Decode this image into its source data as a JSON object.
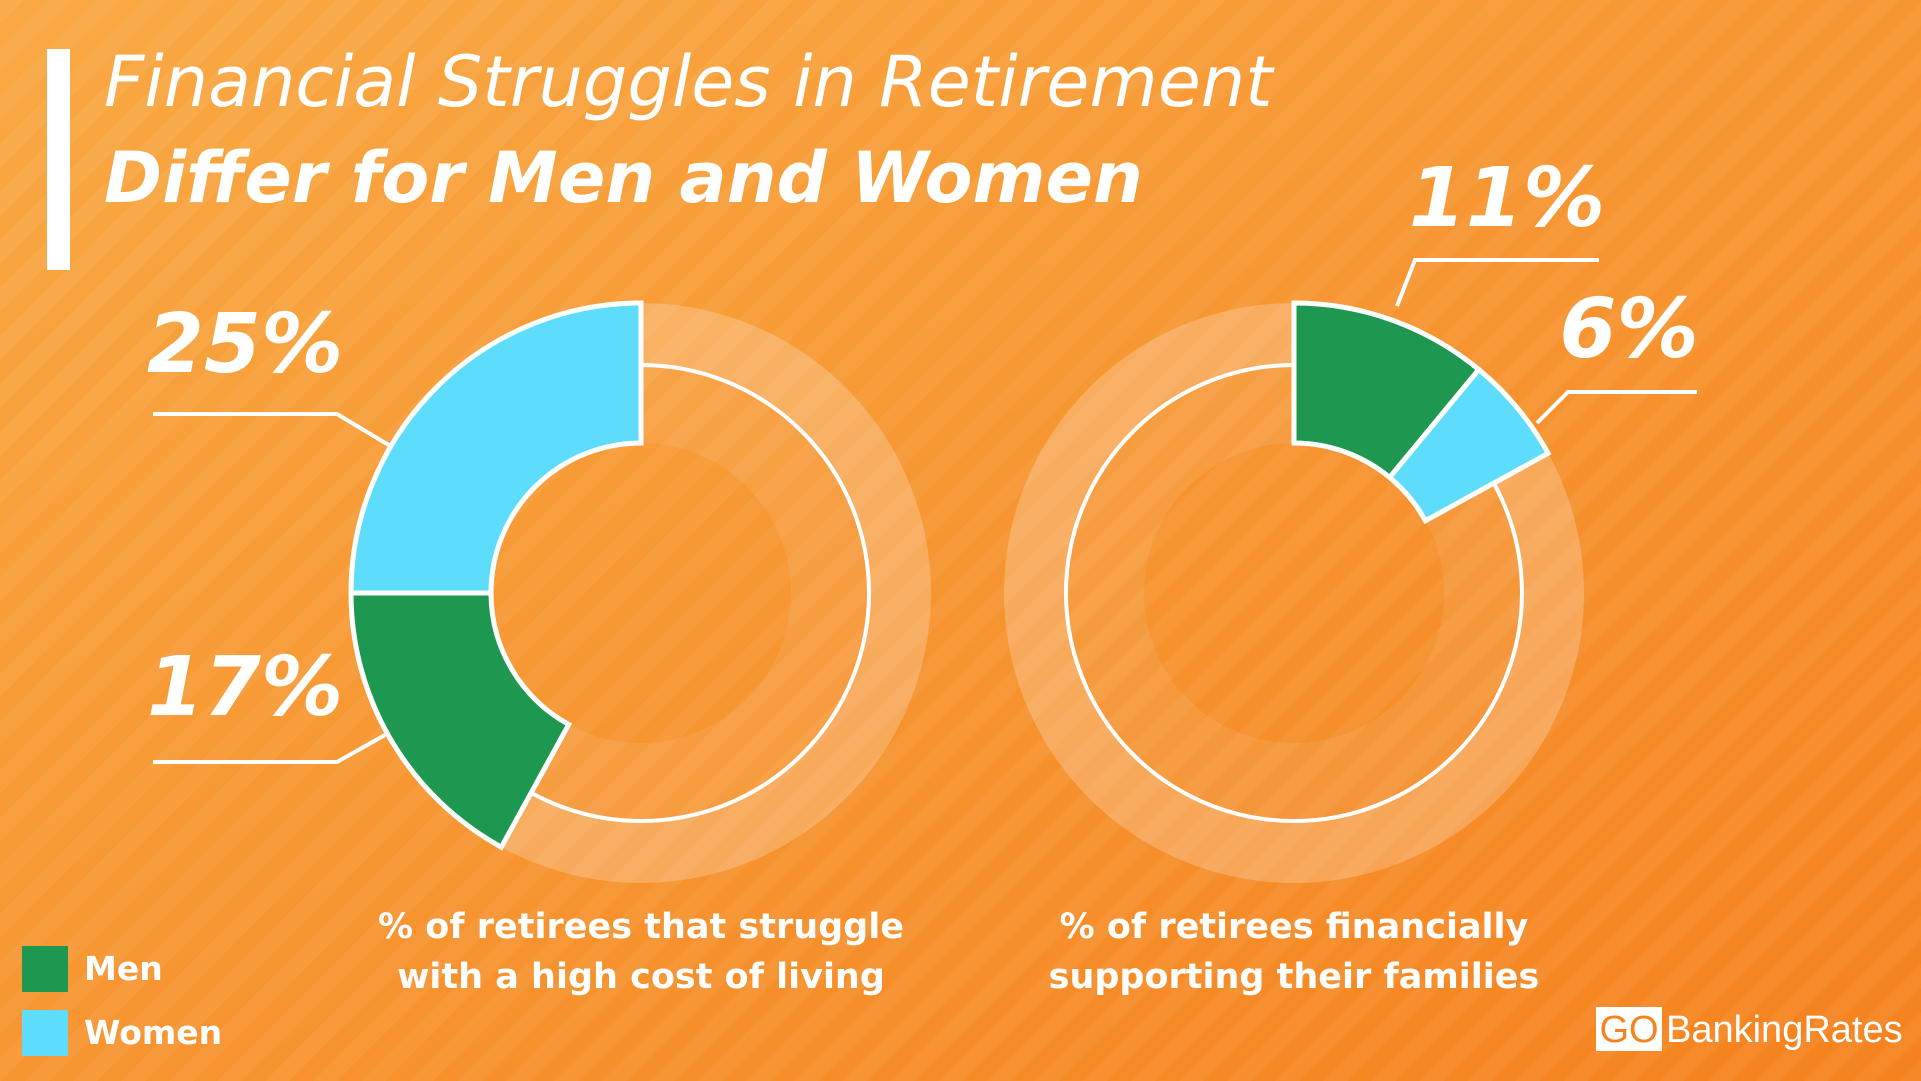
{
  "title": {
    "line1": "Financial Struggles in Retirement",
    "line2": "Differ for Men and Women"
  },
  "chart_data": [
    {
      "type": "donut",
      "caption": [
        "% of retirees that struggle",
        "with a high cost of living"
      ],
      "categories": [
        "Women",
        "Men"
      ],
      "values": [
        25,
        17
      ],
      "value_labels": [
        "25%",
        "17%"
      ],
      "colors": [
        "#5ddcfc",
        "#1e9850"
      ],
      "direction": "counterclockwise"
    },
    {
      "type": "donut",
      "caption": [
        "% of retirees financially",
        "supporting their families"
      ],
      "categories": [
        "Men",
        "Women"
      ],
      "values": [
        11,
        6
      ],
      "value_labels": [
        "11%",
        "6%"
      ],
      "colors": [
        "#1e9850",
        "#5ddcfc"
      ],
      "direction": "clockwise"
    }
  ],
  "brand": {
    "prefix": "GO",
    "name": "BankingRates"
  }
}
